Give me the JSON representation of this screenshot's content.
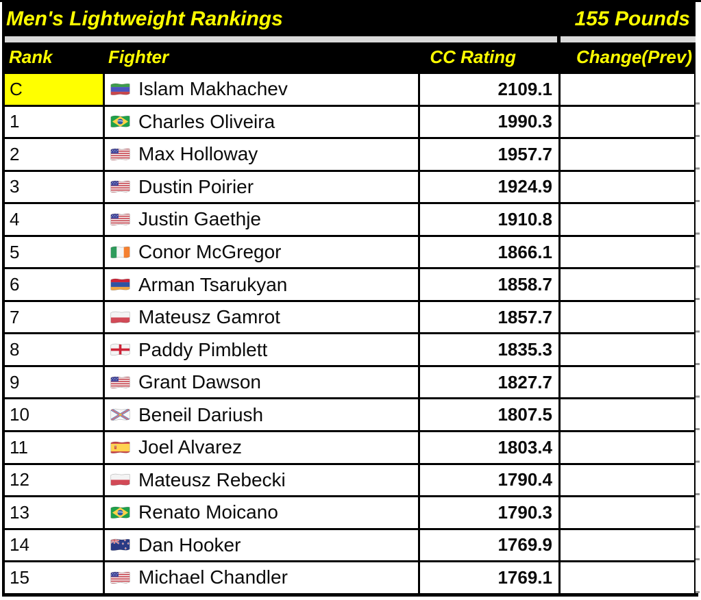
{
  "header": {
    "title": "Men's Lightweight Rankings",
    "weight_class": "155 Pounds"
  },
  "columns": [
    "Rank",
    "Fighter",
    "CC Rating",
    "Change(Prev)"
  ],
  "colors": {
    "header_bg": "#000000",
    "header_text": "#FFFF00",
    "band_gray": "#D9D9D9",
    "row_bg": "#FFFFFF",
    "champion_highlight": "#FFFF00",
    "body_text": "#000000"
  },
  "rows": [
    {
      "rank": "C",
      "highlight": true,
      "flag": "dagestan",
      "fighter": "Islam Makhachev",
      "rating": "2109.1",
      "change": ""
    },
    {
      "rank": "1",
      "highlight": false,
      "flag": "brazil",
      "fighter": "Charles Oliveira",
      "rating": "1990.3",
      "change": ""
    },
    {
      "rank": "2",
      "highlight": false,
      "flag": "usa",
      "fighter": "Max Holloway",
      "rating": "1957.7",
      "change": ""
    },
    {
      "rank": "3",
      "highlight": false,
      "flag": "usa",
      "fighter": "Dustin Poirier",
      "rating": "1924.9",
      "change": ""
    },
    {
      "rank": "4",
      "highlight": false,
      "flag": "usa",
      "fighter": "Justin Gaethje",
      "rating": "1910.8",
      "change": ""
    },
    {
      "rank": "5",
      "highlight": false,
      "flag": "ireland",
      "fighter": "Conor McGregor",
      "rating": "1866.1",
      "change": ""
    },
    {
      "rank": "6",
      "highlight": false,
      "flag": "armenia",
      "fighter": "Arman Tsarukyan",
      "rating": "1858.7",
      "change": ""
    },
    {
      "rank": "7",
      "highlight": false,
      "flag": "poland",
      "fighter": "Mateusz Gamrot",
      "rating": "1857.7",
      "change": ""
    },
    {
      "rank": "8",
      "highlight": false,
      "flag": "england",
      "fighter": "Paddy Pimblett",
      "rating": "1835.3",
      "change": ""
    },
    {
      "rank": "9",
      "highlight": false,
      "flag": "usa",
      "fighter": "Grant Dawson",
      "rating": "1827.7",
      "change": ""
    },
    {
      "rank": "10",
      "highlight": false,
      "flag": "assyria",
      "fighter": "Beneil Dariush",
      "rating": "1807.5",
      "change": ""
    },
    {
      "rank": "11",
      "highlight": false,
      "flag": "spain",
      "fighter": "Joel Alvarez",
      "rating": "1803.4",
      "change": ""
    },
    {
      "rank": "12",
      "highlight": false,
      "flag": "poland",
      "fighter": "Mateusz Rebecki",
      "rating": "1790.4",
      "change": ""
    },
    {
      "rank": "13",
      "highlight": false,
      "flag": "brazil",
      "fighter": "Renato Moicano",
      "rating": "1790.3",
      "change": ""
    },
    {
      "rank": "14",
      "highlight": false,
      "flag": "new-zealand",
      "fighter": "Dan Hooker",
      "rating": "1769.9",
      "change": ""
    },
    {
      "rank": "15",
      "highlight": false,
      "flag": "usa",
      "fighter": "Michael Chandler",
      "rating": "1769.1",
      "change": ""
    }
  ]
}
